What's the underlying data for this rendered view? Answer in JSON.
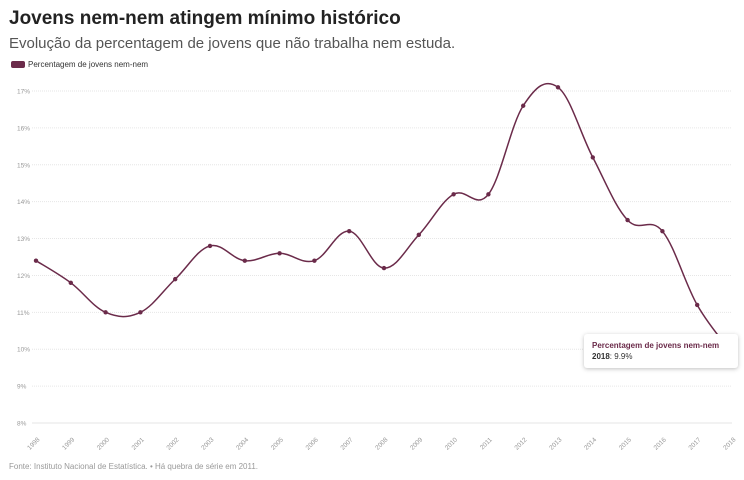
{
  "title": "Jovens nem-nem atingem mínimo histórico",
  "subtitle": "Evolução da percentagem de jovens que não trabalha nem estuda.",
  "footer": "Fonte: Instituto Nacional de Estatística. • Há quebra de série em 2011.",
  "colors": {
    "series": "#6b2b4a",
    "grid": "#e6e6e6",
    "axis_text": "#999999"
  },
  "tooltip": {
    "series": "Percentagem de jovens nem-nem",
    "year": "2018",
    "value": "9.9%"
  },
  "chart_data": {
    "type": "line",
    "x": [
      "1998",
      "1999",
      "2000",
      "2001",
      "2002",
      "2003",
      "2004",
      "2005",
      "2006",
      "2007",
      "2008",
      "2009",
      "2010",
      "2011",
      "2012",
      "2013",
      "2014",
      "2015",
      "2016",
      "2017",
      "2018"
    ],
    "series": [
      {
        "name": "Percentagem de jovens nem-nem",
        "values": [
          12.4,
          11.8,
          11.0,
          11.0,
          11.9,
          12.8,
          12.4,
          12.6,
          12.4,
          13.2,
          12.2,
          13.1,
          14.2,
          14.2,
          16.6,
          17.1,
          15.2,
          13.5,
          13.2,
          11.2,
          9.9
        ]
      }
    ],
    "ylim": [
      8,
      17
    ],
    "yticks": [
      "8%",
      "9%",
      "10%",
      "11%",
      "12%",
      "13%",
      "14%",
      "15%",
      "16%",
      "17%"
    ],
    "xlabel": "",
    "ylabel": "",
    "grid": true,
    "legend": "top-left"
  }
}
